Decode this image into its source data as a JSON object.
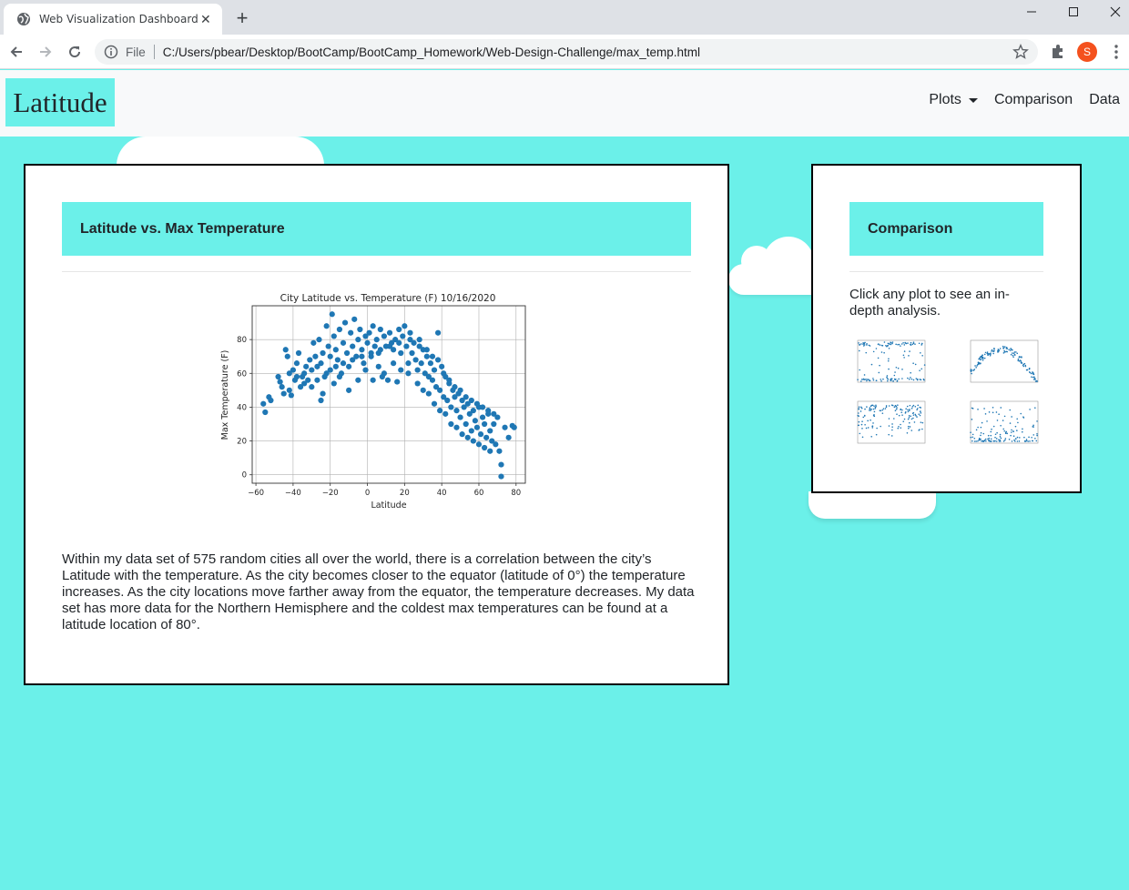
{
  "browser": {
    "tab_title": "Web Visualization Dashboard",
    "scheme_label": "File",
    "url": "C:/Users/pbear/Desktop/BootCamp/BootCamp_Homework/Web-Design-Challenge/max_temp.html",
    "profile_initial": "S",
    "profile_color": "#f4511e"
  },
  "navbar": {
    "brand": "Latitude",
    "links": [
      {
        "label": "Plots",
        "dropdown": true
      },
      {
        "label": "Comparison"
      },
      {
        "label": "Data"
      }
    ]
  },
  "colors": {
    "accent": "#6bf0e9",
    "point": "#1f77b4",
    "page_bg": "#6bf0e9"
  },
  "main_card": {
    "title": "Latitude vs. Max Temperature",
    "description": "Within my data set of 575 random cities all over the world, there is a correlation between the city’s Latitude with the temperature. As the city becomes closer to the equator (latitude of 0°) the temperature increases. As the city locations move farther away from the equator, the temperature decreases. My data set has more data for the Northern Hemisphere and the coldest max temperatures can be found at a latitude location of 80°."
  },
  "side_card": {
    "title": "Comparison",
    "text": "Click any plot to see an in-depth analysis.",
    "thumbnails": [
      "cloudiness-plot",
      "max-temp-plot",
      "humidity-plot",
      "wind-speed-plot"
    ]
  },
  "chart_data": {
    "type": "scatter",
    "title": "City Latitude vs. Temperature (F) 10/16/2020",
    "xlabel": "Latitude",
    "ylabel": "Max Temperature (F)",
    "xlim": [
      -62,
      85
    ],
    "ylim": [
      -5,
      100
    ],
    "xticks": [
      -60,
      -40,
      -20,
      0,
      20,
      40,
      60,
      80
    ],
    "yticks": [
      0,
      20,
      40,
      60,
      80
    ],
    "xtick_labels": [
      "−60",
      "−40",
      "−20",
      "0",
      "20",
      "40",
      "60",
      "80"
    ],
    "ytick_labels": [
      "0",
      "20",
      "40",
      "60",
      "80"
    ],
    "grid": true,
    "points": [
      [
        -56,
        42
      ],
      [
        -55,
        37
      ],
      [
        -53,
        46
      ],
      [
        -52,
        44
      ],
      [
        -48,
        58
      ],
      [
        -47,
        55
      ],
      [
        -46,
        52
      ],
      [
        -45,
        48
      ],
      [
        -44,
        74
      ],
      [
        -43,
        70
      ],
      [
        -42,
        50
      ],
      [
        -41,
        47
      ],
      [
        -40,
        62
      ],
      [
        -39,
        56
      ],
      [
        -38,
        66
      ],
      [
        -37,
        72
      ],
      [
        -36,
        52
      ],
      [
        -35,
        58
      ],
      [
        -34,
        60
      ],
      [
        -33,
        64
      ],
      [
        -32,
        56
      ],
      [
        -31,
        68
      ],
      [
        -30,
        62
      ],
      [
        -29,
        78
      ],
      [
        -28,
        70
      ],
      [
        -27,
        64
      ],
      [
        -26,
        80
      ],
      [
        -25,
        66
      ],
      [
        -24,
        72
      ],
      [
        -23,
        58
      ],
      [
        -22,
        88
      ],
      [
        -21,
        76
      ],
      [
        -20,
        70
      ],
      [
        -19,
        95
      ],
      [
        -18,
        82
      ],
      [
        -17,
        74
      ],
      [
        -16,
        68
      ],
      [
        -15,
        86
      ],
      [
        -14,
        60
      ],
      [
        -13,
        78
      ],
      [
        -12,
        90
      ],
      [
        -11,
        72
      ],
      [
        -10,
        64
      ],
      [
        -9,
        84
      ],
      [
        -8,
        76
      ],
      [
        -7,
        92
      ],
      [
        -6,
        70
      ],
      [
        -5,
        80
      ],
      [
        -4,
        86
      ],
      [
        -3,
        74
      ],
      [
        -2,
        66
      ],
      [
        -1,
        82
      ],
      [
        0,
        78
      ],
      [
        1,
        84
      ],
      [
        2,
        70
      ],
      [
        3,
        88
      ],
      [
        4,
        76
      ],
      [
        5,
        80
      ],
      [
        6,
        72
      ],
      [
        7,
        86
      ],
      [
        8,
        58
      ],
      [
        9,
        82
      ],
      [
        10,
        76
      ],
      [
        11,
        56
      ],
      [
        12,
        84
      ],
      [
        13,
        78
      ],
      [
        14,
        74
      ],
      [
        15,
        80
      ],
      [
        16,
        55
      ],
      [
        17,
        86
      ],
      [
        18,
        72
      ],
      [
        19,
        82
      ],
      [
        20,
        88
      ],
      [
        21,
        76
      ],
      [
        22,
        60
      ],
      [
        23,
        84
      ],
      [
        24,
        72
      ],
      [
        25,
        78
      ],
      [
        26,
        68
      ],
      [
        27,
        62
      ],
      [
        28,
        80
      ],
      [
        29,
        66
      ],
      [
        30,
        74
      ],
      [
        31,
        60
      ],
      [
        32,
        70
      ],
      [
        33,
        58
      ],
      [
        34,
        66
      ],
      [
        35,
        56
      ],
      [
        36,
        62
      ],
      [
        37,
        52
      ],
      [
        38,
        84
      ],
      [
        39,
        50
      ],
      [
        40,
        64
      ],
      [
        41,
        46
      ],
      [
        42,
        58
      ],
      [
        43,
        44
      ],
      [
        44,
        54
      ],
      [
        45,
        40
      ],
      [
        46,
        50
      ],
      [
        47,
        46
      ],
      [
        48,
        38
      ],
      [
        49,
        48
      ],
      [
        50,
        34
      ],
      [
        51,
        44
      ],
      [
        52,
        40
      ],
      [
        53,
        30
      ],
      [
        54,
        42
      ],
      [
        55,
        36
      ],
      [
        56,
        26
      ],
      [
        57,
        38
      ],
      [
        58,
        32
      ],
      [
        59,
        28
      ],
      [
        60,
        40
      ],
      [
        61,
        24
      ],
      [
        62,
        34
      ],
      [
        63,
        30
      ],
      [
        64,
        22
      ],
      [
        65,
        36
      ],
      [
        66,
        26
      ],
      [
        67,
        20
      ],
      [
        68,
        30
      ],
      [
        69,
        18
      ],
      [
        70,
        34
      ],
      [
        71,
        14
      ],
      [
        72,
        6
      ],
      [
        72,
        -1
      ],
      [
        74,
        28
      ],
      [
        76,
        22
      ],
      [
        78,
        29
      ],
      [
        79,
        28
      ],
      [
        -25,
        44
      ],
      [
        -24,
        48
      ],
      [
        -20,
        62
      ],
      [
        -18,
        54
      ],
      [
        -15,
        58
      ],
      [
        -10,
        50
      ],
      [
        -5,
        56
      ],
      [
        -1,
        62
      ],
      [
        3,
        56
      ],
      [
        6,
        64
      ],
      [
        9,
        60
      ],
      [
        14,
        66
      ],
      [
        18,
        62
      ],
      [
        22,
        66
      ],
      [
        27,
        54
      ],
      [
        30,
        50
      ],
      [
        33,
        48
      ],
      [
        36,
        42
      ],
      [
        39,
        38
      ],
      [
        42,
        36
      ],
      [
        45,
        30
      ],
      [
        48,
        28
      ],
      [
        51,
        24
      ],
      [
        54,
        22
      ],
      [
        57,
        20
      ],
      [
        60,
        18
      ],
      [
        63,
        16
      ],
      [
        66,
        14
      ],
      [
        -42,
        60
      ],
      [
        -38,
        58
      ],
      [
        -34,
        54
      ],
      [
        -30,
        52
      ],
      [
        -27,
        56
      ],
      [
        -22,
        60
      ],
      [
        -17,
        64
      ],
      [
        -13,
        66
      ],
      [
        -8,
        68
      ],
      [
        -3,
        70
      ],
      [
        2,
        72
      ],
      [
        7,
        74
      ],
      [
        12,
        76
      ],
      [
        17,
        78
      ],
      [
        23,
        80
      ],
      [
        28,
        76
      ],
      [
        32,
        74
      ],
      [
        35,
        70
      ],
      [
        38,
        68
      ],
      [
        41,
        60
      ],
      [
        44,
        56
      ],
      [
        47,
        52
      ],
      [
        50,
        50
      ],
      [
        53,
        46
      ],
      [
        56,
        44
      ],
      [
        59,
        42
      ],
      [
        62,
        40
      ],
      [
        65,
        38
      ],
      [
        68,
        36
      ]
    ]
  }
}
